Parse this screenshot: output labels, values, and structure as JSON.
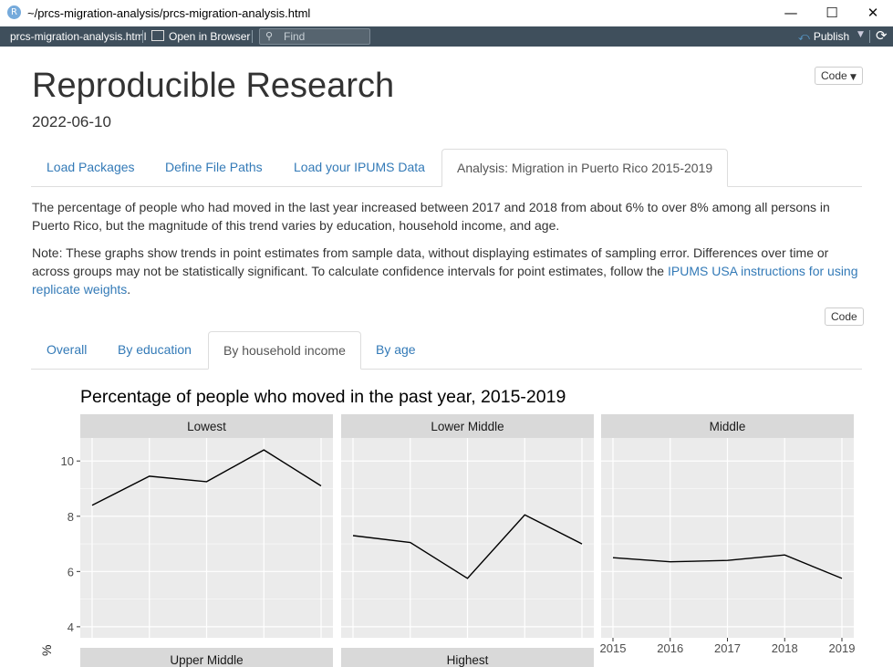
{
  "window": {
    "title": "~/prcs-migration-analysis/prcs-migration-analysis.html",
    "app_icon": "R"
  },
  "toolbar": {
    "file_name": "prcs-migration-analysis.html",
    "open_browser": "Open in Browser",
    "find_placeholder": "Find",
    "publish": "Publish"
  },
  "doc": {
    "title": "Reproducible Research",
    "date": "2022-06-10",
    "code_menu_label": "Code",
    "tabs": [
      "Load Packages",
      "Define File Paths",
      "Load your IPUMS Data",
      "Analysis: Migration in Puerto Rico 2015-2019"
    ],
    "paragraph1": "The percentage of people who had moved in the last year increased between 2017 and 2018 from about 6% to over 8% among all persons in Puerto Rico, but the magnitude of this trend varies by education, household income, and age.",
    "paragraph2_text": "Note: These graphs show trends in point estimates from sample data, without displaying estimates of sampling error. Differences over time or across groups may not be statistically significant. To calculate confidence intervals for point estimates, follow the ",
    "paragraph2_link": "IPUMS USA instructions for using replicate weights",
    "paragraph2_end": ".",
    "code_button": "Code",
    "subtabs": [
      "Overall",
      "By education",
      "By household income",
      "By age"
    ]
  },
  "chart_data": {
    "type": "line",
    "title": "Percentage of people who moved in the past year, 2015-2019",
    "ylabel": "%",
    "x": [
      2015,
      2016,
      2017,
      2018,
      2019
    ],
    "x_tick_labels": [
      "2015",
      "2016",
      "2017",
      "2018",
      "2019"
    ],
    "y_ticks": [
      4,
      6,
      8,
      10
    ],
    "ylim": [
      3.6,
      10.8
    ],
    "grid": true,
    "facets": [
      {
        "name": "Lowest",
        "values": [
          8.4,
          9.45,
          9.25,
          10.4,
          9.1
        ]
      },
      {
        "name": "Lower Middle",
        "values": [
          7.3,
          7.05,
          5.75,
          8.05,
          7.0
        ]
      },
      {
        "name": "Middle",
        "values": [
          6.5,
          6.35,
          6.4,
          6.6,
          5.75
        ]
      },
      {
        "name": "Upper Middle",
        "values": []
      },
      {
        "name": "Highest",
        "values": []
      }
    ],
    "colors": {
      "panel": "#ebebeb",
      "strip": "#d9d9d9",
      "line": "#000000",
      "grid": "#ffffff"
    }
  }
}
